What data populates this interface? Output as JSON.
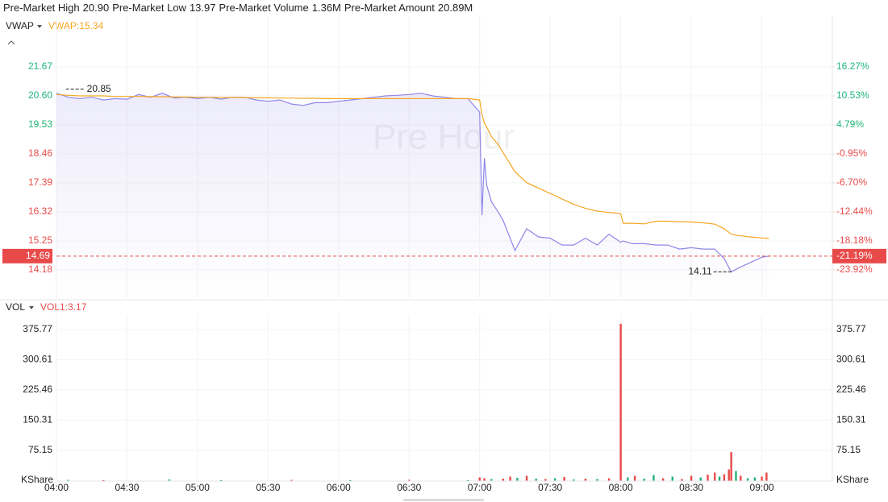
{
  "header": {
    "stats": [
      {
        "label": "Pre-Market High",
        "value": "20.90"
      },
      {
        "label": "Pre-Market Low",
        "value": "13.97"
      },
      {
        "label": "Pre-Market Volume",
        "value": "1.36M"
      },
      {
        "label": "Pre-Market Amount",
        "value": "20.89M"
      }
    ]
  },
  "chart_data": [
    {
      "type": "line",
      "indicator": "VWAP",
      "legend_label": "VWAP:15.34",
      "watermark": "Pre Hour",
      "xlim": [
        "04:00",
        "09:30"
      ],
      "x": [
        "04:00",
        "04:05",
        "04:10",
        "04:15",
        "04:20",
        "04:25",
        "04:30",
        "04:35",
        "04:40",
        "04:45",
        "04:50",
        "04:55",
        "05:00",
        "05:05",
        "05:10",
        "05:15",
        "05:20",
        "05:25",
        "05:30",
        "05:35",
        "05:40",
        "05:45",
        "05:50",
        "05:55",
        "06:00",
        "06:05",
        "06:10",
        "06:15",
        "06:20",
        "06:25",
        "06:30",
        "06:35",
        "06:40",
        "06:45",
        "06:50",
        "06:55",
        "07:00",
        "07:01",
        "07:02",
        "07:03",
        "07:05",
        "07:08",
        "07:10",
        "07:15",
        "07:20",
        "07:25",
        "07:30",
        "07:35",
        "07:40",
        "07:45",
        "07:50",
        "07:55",
        "08:00",
        "08:01",
        "08:05",
        "08:10",
        "08:15",
        "08:20",
        "08:25",
        "08:30",
        "08:35",
        "08:40",
        "08:44",
        "08:47",
        "08:50",
        "08:55",
        "09:00",
        "09:03"
      ],
      "series": [
        {
          "color": "#8f86e8",
          "values": [
            20.7,
            20.55,
            20.5,
            20.55,
            20.45,
            20.5,
            20.48,
            20.65,
            20.55,
            20.7,
            20.52,
            20.55,
            20.5,
            20.55,
            20.48,
            20.55,
            20.55,
            20.45,
            20.4,
            20.45,
            20.3,
            20.25,
            20.35,
            20.35,
            20.4,
            20.45,
            20.5,
            20.55,
            20.6,
            20.62,
            20.65,
            20.7,
            20.6,
            20.55,
            20.5,
            20.5,
            20.0,
            16.2,
            18.3,
            17.3,
            16.7,
            16.3,
            16.0,
            14.9,
            15.7,
            15.4,
            15.35,
            15.1,
            15.1,
            15.35,
            15.1,
            15.5,
            15.2,
            15.25,
            15.15,
            15.15,
            15.1,
            15.1,
            14.95,
            15.0,
            14.95,
            14.95,
            14.6,
            14.11,
            14.25,
            14.45,
            14.65,
            14.69
          ]
        },
        {
          "name": "VWAP",
          "color": "#f5a623",
          "values": [
            20.65,
            20.62,
            20.6,
            20.6,
            20.6,
            20.58,
            20.58,
            20.58,
            20.57,
            20.57,
            20.56,
            20.56,
            20.55,
            20.55,
            20.54,
            20.54,
            20.54,
            20.53,
            20.53,
            20.52,
            20.52,
            20.51,
            20.51,
            20.5,
            20.5,
            20.5,
            20.5,
            20.5,
            20.5,
            20.5,
            20.5,
            20.5,
            20.5,
            20.5,
            20.5,
            20.5,
            20.45,
            19.9,
            19.6,
            19.45,
            19.1,
            18.8,
            18.5,
            17.8,
            17.4,
            17.2,
            17.0,
            16.8,
            16.6,
            16.45,
            16.35,
            16.3,
            16.26,
            15.9,
            15.9,
            15.88,
            15.98,
            15.98,
            15.96,
            15.95,
            15.92,
            15.87,
            15.7,
            15.5,
            15.45,
            15.4,
            15.36,
            15.34
          ]
        }
      ],
      "ylim": [
        13.14,
        22.8
      ],
      "yticks": [
        21.67,
        {
          "value": 20.6,
          "label": "20.60"
        },
        19.53,
        18.46,
        17.39,
        16.32,
        15.25,
        14.18
      ],
      "y2lim": [
        -29.5,
        22.33
      ],
      "y2ticks": [
        {
          "value": 16.27,
          "label": "16.27%"
        },
        {
          "value": 10.53,
          "label": "10.53%"
        },
        {
          "value": 4.79,
          "label": "4.79%"
        },
        {
          "value": -0.95,
          "label": "-0.95%"
        },
        {
          "value": -6.7,
          "label": "-6.70%"
        },
        {
          "value": -12.44,
          "label": "-12.44%"
        },
        {
          "value": -18.18,
          "label": "-18.18%"
        },
        {
          "value": -23.92,
          "label": "-23.92%"
        }
      ],
      "last_price": 14.69,
      "last_change": {
        "value": -21.19,
        "label": "-21.19%"
      },
      "annotations": [
        {
          "x": "04:04",
          "y": 20.85
        },
        {
          "x": "08:47",
          "y": 14.11
        }
      ],
      "grid": true
    },
    {
      "type": "bar",
      "indicator": "VOL",
      "legend_label": "VOL1:3.17",
      "unit": "KShare",
      "xlim": [
        "04:00",
        "09:30"
      ],
      "x": [
        "04:05",
        "04:20",
        "04:48",
        "05:10",
        "05:40",
        "06:05",
        "06:30",
        "06:55",
        "07:00",
        "07:02",
        "07:05",
        "07:10",
        "07:13",
        "07:16",
        "07:20",
        "07:24",
        "07:28",
        "07:32",
        "07:36",
        "07:40",
        "07:45",
        "07:50",
        "07:55",
        "08:00",
        "08:03",
        "08:06",
        "08:10",
        "08:14",
        "08:18",
        "08:22",
        "08:26",
        "08:30",
        "08:34",
        "08:37",
        "08:40",
        "08:42",
        "08:44",
        "08:46",
        "08:47",
        "08:49",
        "08:51",
        "08:54",
        "08:57",
        "09:00",
        "09:02"
      ],
      "values": [
        2,
        1,
        3,
        1,
        2,
        1,
        2,
        1,
        8,
        6,
        4,
        5,
        10,
        7,
        12,
        5,
        4,
        6,
        9,
        3,
        5,
        4,
        6,
        390,
        8,
        12,
        5,
        14,
        6,
        10,
        4,
        12,
        8,
        15,
        20,
        10,
        16,
        28,
        71,
        24,
        12,
        6,
        8,
        10,
        20
      ],
      "colors": [
        "#26b07a",
        "#e84a4a",
        "#26b07a",
        "#26b07a",
        "#e84a4a",
        "#26b07a",
        "#e84a4a",
        "#26b07a",
        "#e84a4a",
        "#e84a4a",
        "#26b07a",
        "#e84a4a",
        "#e84a4a",
        "#26b07a",
        "#e84a4a",
        "#26b07a",
        "#e84a4a",
        "#26b07a",
        "#e84a4a",
        "#26b07a",
        "#e84a4a",
        "#26b07a",
        "#e84a4a",
        "#e84a4a",
        "#26b07a",
        "#e84a4a",
        "#26b07a",
        "#26b07a",
        "#e84a4a",
        "#26b07a",
        "#e84a4a",
        "#e84a4a",
        "#26b07a",
        "#e84a4a",
        "#e84a4a",
        "#26b07a",
        "#e84a4a",
        "#e84a4a",
        "#e84a4a",
        "#26b07a",
        "#e84a4a",
        "#26b07a",
        "#26b07a",
        "#e84a4a",
        "#e84a4a"
      ],
      "ylim": [
        0,
        403.8
      ],
      "yticks": [
        375.77,
        300.61,
        225.46,
        150.31,
        75.15
      ],
      "xticks": [
        "04:00",
        "04:30",
        "05:00",
        "05:30",
        "06:00",
        "06:30",
        "07:00",
        "07:30",
        "08:00",
        "08:30",
        "09:00"
      ],
      "grid": true
    }
  ]
}
